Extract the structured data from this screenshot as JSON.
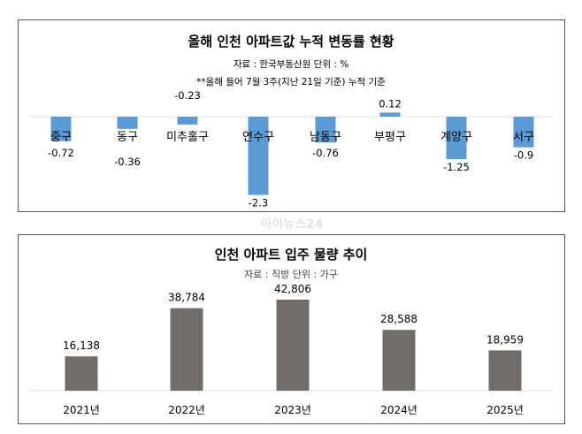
{
  "watermark": "아이뉴스24",
  "chart_data": [
    {
      "type": "bar",
      "title": "올해 인천 아파트값 누적 변동률 현황",
      "subtitle": "자료 : 한국부동산원   단위 : %",
      "note": "**올해 들어 7월 3주(지난 21일 기준) 누적 기준",
      "categories": [
        "중구",
        "동구",
        "미추홀구",
        "연수구",
        "남동구",
        "부평구",
        "계양구",
        "서구"
      ],
      "values": [
        -0.72,
        -0.36,
        -0.23,
        -2.3,
        -0.76,
        0.12,
        -1.25,
        -0.9
      ],
      "value_labels": [
        "-0.72",
        "-0.36",
        "-0.23",
        "-2.3",
        "-0.76",
        "0.12",
        "-1.25",
        "-0.9"
      ],
      "color": "#5b9bd5",
      "grid": false
    },
    {
      "type": "bar",
      "title": "인천 아파트 입주 물량 추이",
      "subtitle": "자료 : 직방   단위 : 가구",
      "categories": [
        "2021년",
        "2022년",
        "2023년",
        "2024년",
        "2025년"
      ],
      "values": [
        16138,
        38784,
        42806,
        28588,
        18959
      ],
      "value_labels": [
        "16,138",
        "38,784",
        "42,806",
        "28,588",
        "18,959"
      ],
      "color": "#716d6b",
      "grid": false
    }
  ]
}
